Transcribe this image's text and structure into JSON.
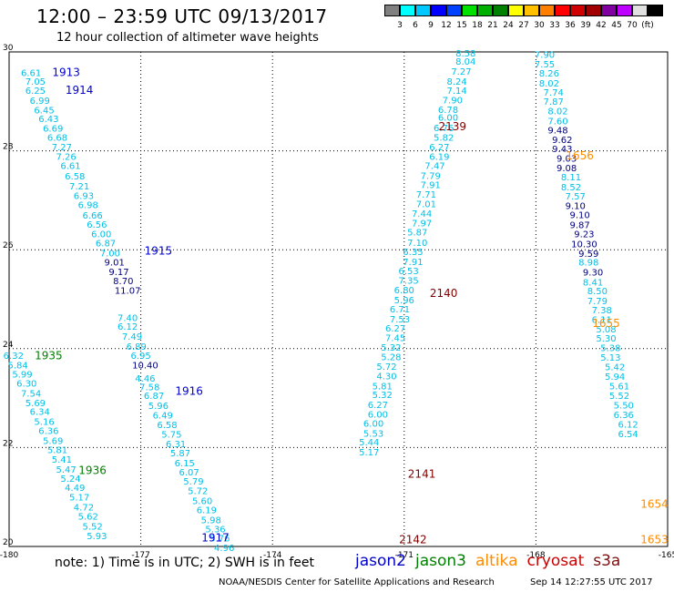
{
  "header": {
    "title": "12:00 – 23:59 UTC 09/13/2017",
    "subtitle": "12 hour collection of altimeter wave heights"
  },
  "colorbar": {
    "colors": [
      "#808080",
      "#00ffff",
      "#00c8ff",
      "#0000ff",
      "#0040ff",
      "#00e000",
      "#00b000",
      "#008000",
      "#ffff00",
      "#ffc000",
      "#ff8000",
      "#ff0000",
      "#d00000",
      "#a00000",
      "#8000a0",
      "#c000ff",
      "#e0e0e0",
      "#000000"
    ],
    "labels": [
      "3",
      "6",
      "9",
      "12",
      "15",
      "18",
      "21",
      "24",
      "27",
      "30",
      "33",
      "36",
      "39",
      "42",
      "45",
      "70",
      "(ft)"
    ]
  },
  "note": "note:  1) Time is in UTC;  2) SWH is in feet",
  "satellites": [
    {
      "name": "jason2",
      "color": "#0000cc"
    },
    {
      "name": "jason3",
      "color": "#008000"
    },
    {
      "name": "altika",
      "color": "#ff8c00"
    },
    {
      "name": "cryosat",
      "color": "#cc0000"
    },
    {
      "name": "s3a",
      "color": "#7a1010"
    }
  ],
  "footer": {
    "left": "NOAA/NESDIS Center for Satellite Applications and Research",
    "right": "Sep 14 12:27:55 UTC 2017"
  },
  "chart_data": {
    "type": "scatter",
    "xlim": [
      -180,
      -165
    ],
    "ylim": [
      20,
      30
    ],
    "x_ticks": [
      "-180",
      "-177",
      "-174",
      "-171",
      "-168",
      "-165"
    ],
    "y_ticks": [
      "30",
      "28",
      "26",
      "24",
      "22",
      "20"
    ],
    "colors": {
      "cyan": "#00c0e8",
      "blue": "#0000d0",
      "navy": "#000080",
      "green": "#008000",
      "darkred": "#800000",
      "orange": "#ff8c00"
    },
    "time_labels": [
      {
        "text": "1913",
        "x": -178.7,
        "y": 29.51,
        "color": "blue"
      },
      {
        "text": "1914",
        "x": -178.4,
        "y": 29.15,
        "color": "blue"
      },
      {
        "text": "1915",
        "x": -176.6,
        "y": 25.9,
        "color": "blue"
      },
      {
        "text": "1935",
        "x": -179.1,
        "y": 23.78,
        "color": "green"
      },
      {
        "text": "1916",
        "x": -175.9,
        "y": 23.07,
        "color": "blue"
      },
      {
        "text": "1936",
        "x": -178.1,
        "y": 21.46,
        "color": "green"
      },
      {
        "text": "1917",
        "x": -175.3,
        "y": 20.1,
        "color": "blue"
      },
      {
        "text": "2139",
        "x": -169.9,
        "y": 28.42,
        "color": "darkred"
      },
      {
        "text": "2140",
        "x": -170.1,
        "y": 25.05,
        "color": "darkred"
      },
      {
        "text": "2141",
        "x": -170.6,
        "y": 21.39,
        "color": "darkred"
      },
      {
        "text": "2142",
        "x": -170.8,
        "y": 20.06,
        "color": "darkred"
      },
      {
        "text": "1656",
        "x": -167.0,
        "y": 27.83,
        "color": "orange"
      },
      {
        "text": "1655",
        "x": -166.4,
        "y": 24.44,
        "color": "orange"
      },
      {
        "text": "1654",
        "x": -165.3,
        "y": 20.78,
        "color": "orange"
      },
      {
        "text": "1653",
        "x": -165.3,
        "y": 20.06,
        "color": "orange"
      }
    ],
    "series": [
      {
        "color": "cyan",
        "points": [
          {
            "x": -179.5,
            "y": 29.51,
            "v": "6.61"
          },
          {
            "x": -179.4,
            "y": 29.34,
            "v": "7.05"
          },
          {
            "x": -179.4,
            "y": 29.15,
            "v": "6.25"
          },
          {
            "x": -179.3,
            "y": 28.95,
            "v": "6.99"
          },
          {
            "x": -179.2,
            "y": 28.76,
            "v": "6.45"
          },
          {
            "x": -179.1,
            "y": 28.58,
            "v": "6.43"
          },
          {
            "x": -179.0,
            "y": 28.39,
            "v": "6.69"
          },
          {
            "x": -178.9,
            "y": 28.2,
            "v": "6.68"
          },
          {
            "x": -178.8,
            "y": 28.01,
            "v": "7.27"
          },
          {
            "x": -178.7,
            "y": 27.82,
            "v": "7.26"
          },
          {
            "x": -178.6,
            "y": 27.63,
            "v": "6.61"
          },
          {
            "x": -178.5,
            "y": 27.42,
            "v": "6.58"
          },
          {
            "x": -178.4,
            "y": 27.22,
            "v": "7.21"
          },
          {
            "x": -178.3,
            "y": 27.03,
            "v": "6.93"
          },
          {
            "x": -178.2,
            "y": 26.84,
            "v": "6.98"
          },
          {
            "x": -178.1,
            "y": 26.63,
            "v": "6.66"
          },
          {
            "x": -178.0,
            "y": 26.45,
            "v": "6.56"
          },
          {
            "x": -177.9,
            "y": 26.25,
            "v": "6.00"
          },
          {
            "x": -177.8,
            "y": 26.07,
            "v": "6.87"
          },
          {
            "x": -177.7,
            "y": 25.87,
            "v": "7.00"
          },
          {
            "x": -177.3,
            "y": 24.56,
            "v": "7.40"
          },
          {
            "x": -177.3,
            "y": 24.38,
            "v": "6.12"
          },
          {
            "x": -177.2,
            "y": 24.18,
            "v": "7.49"
          },
          {
            "x": -177.1,
            "y": 23.98,
            "v": "6.89"
          },
          {
            "x": -177.0,
            "y": 23.79,
            "v": "6.95"
          },
          {
            "x": -176.9,
            "y": 23.33,
            "v": "4.46"
          },
          {
            "x": -176.8,
            "y": 23.16,
            "v": "7.58"
          },
          {
            "x": -176.7,
            "y": 22.98,
            "v": "6.87"
          },
          {
            "x": -176.6,
            "y": 22.78,
            "v": "5.96"
          },
          {
            "x": -176.5,
            "y": 22.59,
            "v": "6.49"
          },
          {
            "x": -176.4,
            "y": 22.39,
            "v": "6.58"
          },
          {
            "x": -176.3,
            "y": 22.2,
            "v": "5.75"
          },
          {
            "x": -176.2,
            "y": 22.01,
            "v": "6.31"
          },
          {
            "x": -176.1,
            "y": 21.82,
            "v": "5.87"
          },
          {
            "x": -176.0,
            "y": 21.62,
            "v": "6.15"
          },
          {
            "x": -175.9,
            "y": 21.44,
            "v": "6.07"
          },
          {
            "x": -175.8,
            "y": 21.25,
            "v": "5.79"
          },
          {
            "x": -175.7,
            "y": 21.06,
            "v": "5.72"
          },
          {
            "x": -175.6,
            "y": 20.86,
            "v": "5.60"
          },
          {
            "x": -175.5,
            "y": 20.67,
            "v": "6.19"
          },
          {
            "x": -175.4,
            "y": 20.47,
            "v": "5.98"
          },
          {
            "x": -175.3,
            "y": 20.29,
            "v": "5.36"
          },
          {
            "x": -175.2,
            "y": 20.1,
            "v": "5.76"
          },
          {
            "x": -175.1,
            "y": 19.91,
            "v": "4.96"
          }
        ]
      },
      {
        "color": "navy",
        "points": [
          {
            "x": -177.6,
            "y": 25.68,
            "v": "9.01"
          },
          {
            "x": -177.5,
            "y": 25.49,
            "v": "9.17"
          },
          {
            "x": -177.4,
            "y": 25.3,
            "v": "8.70"
          },
          {
            "x": -177.3,
            "y": 25.11,
            "v": "11.07"
          },
          {
            "x": -176.9,
            "y": 23.6,
            "v": "10.40"
          }
        ]
      },
      {
        "color": "cyan",
        "points": [
          {
            "x": -179.9,
            "y": 23.79,
            "v": "6.32"
          },
          {
            "x": -179.8,
            "y": 23.6,
            "v": "5.84"
          },
          {
            "x": -179.7,
            "y": 23.42,
            "v": "5.99"
          },
          {
            "x": -179.6,
            "y": 23.23,
            "v": "6.30"
          },
          {
            "x": -179.5,
            "y": 23.03,
            "v": "7.54"
          },
          {
            "x": -179.4,
            "y": 22.84,
            "v": "5.69"
          },
          {
            "x": -179.3,
            "y": 22.66,
            "v": "6.34"
          },
          {
            "x": -179.2,
            "y": 22.46,
            "v": "5.16"
          },
          {
            "x": -179.1,
            "y": 22.27,
            "v": "6.36"
          },
          {
            "x": -179.0,
            "y": 22.07,
            "v": "5.69"
          },
          {
            "x": -178.9,
            "y": 21.89,
            "v": "5.81"
          },
          {
            "x": -178.8,
            "y": 21.69,
            "v": "5.41"
          },
          {
            "x": -178.7,
            "y": 21.49,
            "v": "5.47"
          },
          {
            "x": -178.6,
            "y": 21.31,
            "v": "5.24"
          },
          {
            "x": -178.5,
            "y": 21.12,
            "v": "4.49"
          },
          {
            "x": -178.4,
            "y": 20.93,
            "v": "5.17"
          },
          {
            "x": -178.3,
            "y": 20.73,
            "v": "4.72"
          },
          {
            "x": -178.2,
            "y": 20.54,
            "v": "5.62"
          },
          {
            "x": -178.1,
            "y": 20.34,
            "v": "5.52"
          },
          {
            "x": -178.0,
            "y": 20.15,
            "v": "5.93"
          }
        ]
      },
      {
        "color": "cyan",
        "points": [
          {
            "x": -169.6,
            "y": 29.91,
            "v": "8.58"
          },
          {
            "x": -169.6,
            "y": 29.74,
            "v": "8.04"
          },
          {
            "x": -169.7,
            "y": 29.54,
            "v": "7.27"
          },
          {
            "x": -169.8,
            "y": 29.34,
            "v": "8.24"
          },
          {
            "x": -169.8,
            "y": 29.15,
            "v": "7.14"
          },
          {
            "x": -169.9,
            "y": 28.96,
            "v": "7.90"
          },
          {
            "x": -170.0,
            "y": 28.77,
            "v": "6.78"
          },
          {
            "x": -170.0,
            "y": 28.61,
            "v": "6.00"
          },
          {
            "x": -170.1,
            "y": 28.4,
            "v": "6.76"
          },
          {
            "x": -170.1,
            "y": 28.2,
            "v": "5.82"
          },
          {
            "x": -170.2,
            "y": 28.01,
            "v": "6.27"
          },
          {
            "x": -170.2,
            "y": 27.82,
            "v": "6.19"
          },
          {
            "x": -170.3,
            "y": 27.63,
            "v": "7.47"
          },
          {
            "x": -170.4,
            "y": 27.43,
            "v": "7.79"
          },
          {
            "x": -170.4,
            "y": 27.25,
            "v": "7.91"
          },
          {
            "x": -170.5,
            "y": 27.05,
            "v": "7.71"
          },
          {
            "x": -170.5,
            "y": 26.86,
            "v": "7.01"
          },
          {
            "x": -170.6,
            "y": 26.67,
            "v": "7.44"
          },
          {
            "x": -170.6,
            "y": 26.47,
            "v": "7.97"
          },
          {
            "x": -170.7,
            "y": 26.29,
            "v": "5.87"
          },
          {
            "x": -170.7,
            "y": 26.08,
            "v": "7.10"
          },
          {
            "x": -170.8,
            "y": 25.89,
            "v": "6.35"
          },
          {
            "x": -170.8,
            "y": 25.69,
            "v": "7.91"
          },
          {
            "x": -170.9,
            "y": 25.51,
            "v": "6.53"
          },
          {
            "x": -170.9,
            "y": 25.31,
            "v": "7.35"
          },
          {
            "x": -171.0,
            "y": 25.12,
            "v": "6.80"
          },
          {
            "x": -171.0,
            "y": 24.92,
            "v": "5.96"
          },
          {
            "x": -171.1,
            "y": 24.73,
            "v": "6.71"
          },
          {
            "x": -171.1,
            "y": 24.53,
            "v": "7.53"
          },
          {
            "x": -171.2,
            "y": 24.35,
            "v": "6.27"
          },
          {
            "x": -171.2,
            "y": 24.15,
            "v": "7.45"
          },
          {
            "x": -171.3,
            "y": 23.96,
            "v": "5.32"
          },
          {
            "x": -171.3,
            "y": 23.77,
            "v": "5.28"
          },
          {
            "x": -171.4,
            "y": 23.57,
            "v": "5.72"
          },
          {
            "x": -171.4,
            "y": 23.38,
            "v": "4.30"
          },
          {
            "x": -171.5,
            "y": 23.18,
            "v": "5.81"
          },
          {
            "x": -171.5,
            "y": 23.0,
            "v": "5.32"
          },
          {
            "x": -171.6,
            "y": 22.8,
            "v": "6.27"
          },
          {
            "x": -171.6,
            "y": 22.61,
            "v": "6.00"
          },
          {
            "x": -171.7,
            "y": 22.42,
            "v": "6.00"
          },
          {
            "x": -171.7,
            "y": 22.22,
            "v": "5.53"
          },
          {
            "x": -171.8,
            "y": 22.04,
            "v": "5.44"
          },
          {
            "x": -171.8,
            "y": 21.84,
            "v": "5.17"
          }
        ]
      },
      {
        "color": "cyan",
        "points": [
          {
            "x": -167.8,
            "y": 29.88,
            "v": "7.90"
          },
          {
            "x": -167.8,
            "y": 29.69,
            "v": "7.55"
          },
          {
            "x": -167.7,
            "y": 29.5,
            "v": "8.26"
          },
          {
            "x": -167.7,
            "y": 29.3,
            "v": "8.02"
          },
          {
            "x": -167.6,
            "y": 29.12,
            "v": "7.74"
          },
          {
            "x": -167.6,
            "y": 28.93,
            "v": "7.87"
          },
          {
            "x": -167.5,
            "y": 28.74,
            "v": "8.02"
          },
          {
            "x": -167.5,
            "y": 28.54,
            "v": "7.60"
          }
        ]
      },
      {
        "color": "navy",
        "points": [
          {
            "x": -167.5,
            "y": 28.35,
            "v": "9.48"
          },
          {
            "x": -167.4,
            "y": 28.16,
            "v": "9.62"
          },
          {
            "x": -167.4,
            "y": 27.97,
            "v": "9.43"
          },
          {
            "x": -167.3,
            "y": 27.78,
            "v": "9.03"
          },
          {
            "x": -167.3,
            "y": 27.59,
            "v": "9.08"
          }
        ]
      },
      {
        "color": "cyan",
        "points": [
          {
            "x": -167.2,
            "y": 27.4,
            "v": "8.11"
          },
          {
            "x": -167.2,
            "y": 27.2,
            "v": "8.52"
          },
          {
            "x": -167.1,
            "y": 27.02,
            "v": "7.57"
          }
        ]
      },
      {
        "color": "navy",
        "points": [
          {
            "x": -167.1,
            "y": 26.82,
            "v": "9.10"
          },
          {
            "x": -167.0,
            "y": 26.64,
            "v": "9.10"
          },
          {
            "x": -167.0,
            "y": 26.44,
            "v": "9.87"
          },
          {
            "x": -166.9,
            "y": 26.25,
            "v": "9.23"
          },
          {
            "x": -166.9,
            "y": 26.05,
            "v": "10.30"
          },
          {
            "x": -166.8,
            "y": 25.86,
            "v": "9.59"
          }
        ]
      },
      {
        "color": "cyan",
        "points": [
          {
            "x": -166.8,
            "y": 25.68,
            "v": "8.98"
          }
        ]
      },
      {
        "color": "navy",
        "points": [
          {
            "x": -166.7,
            "y": 25.48,
            "v": "9.30"
          }
        ]
      },
      {
        "color": "cyan",
        "points": [
          {
            "x": -166.7,
            "y": 25.28,
            "v": "8.41"
          },
          {
            "x": -166.6,
            "y": 25.1,
            "v": "8.50"
          },
          {
            "x": -166.6,
            "y": 24.9,
            "v": "7.79"
          },
          {
            "x": -166.5,
            "y": 24.71,
            "v": "7.38"
          },
          {
            "x": -166.5,
            "y": 24.52,
            "v": "6.11"
          },
          {
            "x": -166.4,
            "y": 24.33,
            "v": "5.08"
          },
          {
            "x": -166.4,
            "y": 24.14,
            "v": "5.30"
          },
          {
            "x": -166.3,
            "y": 23.95,
            "v": "5.38"
          },
          {
            "x": -166.3,
            "y": 23.76,
            "v": "5.13"
          },
          {
            "x": -166.2,
            "y": 23.56,
            "v": "5.42"
          },
          {
            "x": -166.2,
            "y": 23.37,
            "v": "5.94"
          },
          {
            "x": -166.1,
            "y": 23.18,
            "v": "5.61"
          },
          {
            "x": -166.1,
            "y": 22.98,
            "v": "5.52"
          },
          {
            "x": -166.0,
            "y": 22.79,
            "v": "5.50"
          },
          {
            "x": -166.0,
            "y": 22.6,
            "v": "6.36"
          },
          {
            "x": -165.9,
            "y": 22.4,
            "v": "6.12"
          },
          {
            "x": -165.9,
            "y": 22.21,
            "v": "6.54"
          }
        ]
      }
    ]
  }
}
